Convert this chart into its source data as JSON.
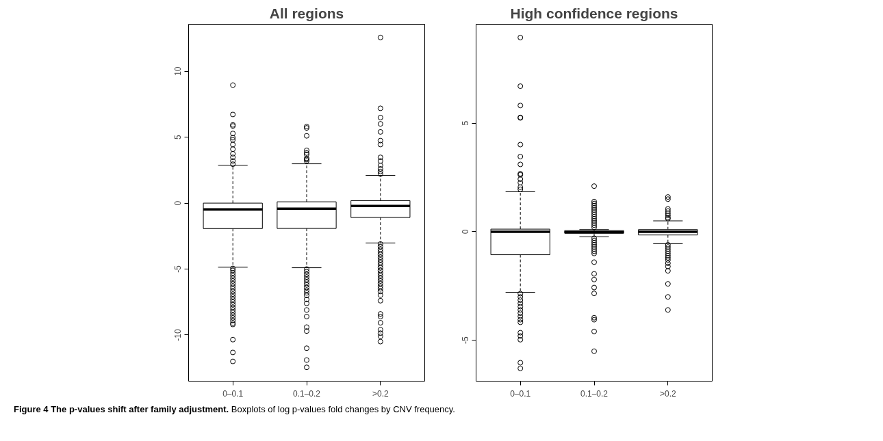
{
  "chart_data": [
    {
      "type": "box",
      "title": "All regions",
      "categories": [
        "0–0.1",
        "0.1–0.2",
        ">0.2"
      ],
      "ylim": [
        -13.5,
        13.56
      ],
      "yticks": [
        -10,
        -5,
        0,
        5,
        10
      ],
      "boxes": [
        {
          "low": -4.86,
          "q1": -1.93,
          "median": -0.47,
          "q3": 0.0,
          "high": 2.87,
          "outliers": [
            8.95,
            6.72,
            5.93,
            5.85,
            5.28,
            4.96,
            4.8,
            4.44,
            4.09,
            3.74,
            3.47,
            3.2,
            2.95,
            -4.95,
            -5.1,
            -5.3,
            -5.5,
            -5.7,
            -5.9,
            -6.1,
            -6.3,
            -6.5,
            -6.7,
            -6.9,
            -7.1,
            -7.3,
            -7.5,
            -7.7,
            -7.9,
            -8.1,
            -8.3,
            -8.5,
            -8.7,
            -8.9,
            -9.1,
            -9.2,
            -10.35,
            -11.32,
            -12.0
          ]
        },
        {
          "low": -4.9,
          "q1": -1.92,
          "median": -0.42,
          "q3": 0.1,
          "high": 2.98,
          "outliers": [
            5.8,
            5.7,
            5.1,
            4.0,
            3.8,
            3.7,
            3.4,
            3.3,
            3.2,
            -5.0,
            -5.2,
            -5.4,
            -5.6,
            -5.8,
            -6.0,
            -6.2,
            -6.4,
            -6.6,
            -6.8,
            -7.0,
            -7.3,
            -7.6,
            -8.1,
            -8.6,
            -9.4,
            -9.7,
            -11.0,
            -11.9,
            -12.45
          ]
        },
        {
          "low": -3.02,
          "q1": -1.09,
          "median": -0.21,
          "q3": 0.19,
          "high": 2.1,
          "outliers": [
            12.56,
            7.19,
            6.49,
            6.01,
            5.4,
            4.74,
            4.44,
            3.47,
            3.2,
            2.86,
            2.6,
            2.4,
            2.2,
            -3.1,
            -3.3,
            -3.5,
            -3.7,
            -3.9,
            -4.1,
            -4.3,
            -4.5,
            -4.7,
            -4.9,
            -5.1,
            -5.3,
            -5.5,
            -5.7,
            -5.9,
            -6.1,
            -6.3,
            -6.5,
            -6.7,
            -6.97,
            -7.4,
            -8.4,
            -8.6,
            -9.07,
            -9.6,
            -9.86,
            -10.1,
            -10.5
          ]
        }
      ],
      "annotations": [
        "Figure 4 The p-values shift after family adjustment.",
        "Boxplots of log p-values fold changes by CNV frequency."
      ]
    },
    {
      "type": "box",
      "title": "High confidence regions",
      "categories": [
        "0–0.1",
        "0.1–0.2",
        ">0.2"
      ],
      "ylim": [
        -6.88,
        9.55
      ],
      "yticks": [
        -5,
        0,
        5
      ],
      "boxes": [
        {
          "low": -2.79,
          "q1": -1.06,
          "median": 0.0,
          "q3": 0.12,
          "high": 1.84,
          "outliers": [
            8.94,
            6.7,
            5.81,
            5.26,
            5.24,
            4.01,
            3.46,
            3.1,
            2.67,
            2.62,
            2.42,
            2.26,
            2.05,
            1.95,
            -2.85,
            -3.0,
            -3.15,
            -3.3,
            -3.45,
            -3.6,
            -3.75,
            -3.9,
            -4.05,
            -4.17,
            -4.65,
            -4.8,
            -4.97,
            -6.03,
            -6.29
          ]
        },
        {
          "low": -0.23,
          "q1": -0.07,
          "median": -0.03,
          "q3": 0.05,
          "high": 0.1,
          "outliers": [
            2.1,
            1.39,
            1.3,
            1.2,
            1.1,
            1.0,
            0.9,
            0.8,
            0.7,
            0.6,
            0.5,
            0.4,
            0.3,
            0.2,
            -0.3,
            -0.4,
            -0.5,
            -0.6,
            -0.7,
            -0.8,
            -0.9,
            -1.0,
            -1.4,
            -1.94,
            -2.2,
            -2.57,
            -2.84,
            -3.96,
            -4.05,
            -4.59,
            -5.5
          ]
        },
        {
          "low": -0.55,
          "q1": -0.15,
          "median": 0.0,
          "q3": 0.1,
          "high": 0.5,
          "outliers": [
            1.6,
            1.5,
            1.05,
            0.95,
            0.85,
            0.75,
            0.65,
            0.6,
            -0.6,
            -0.7,
            -0.8,
            -0.9,
            -1.0,
            -1.1,
            -1.2,
            -1.3,
            -1.45,
            -1.6,
            -1.8,
            -2.4,
            -3.0,
            -3.6
          ]
        }
      ]
    }
  ]
}
